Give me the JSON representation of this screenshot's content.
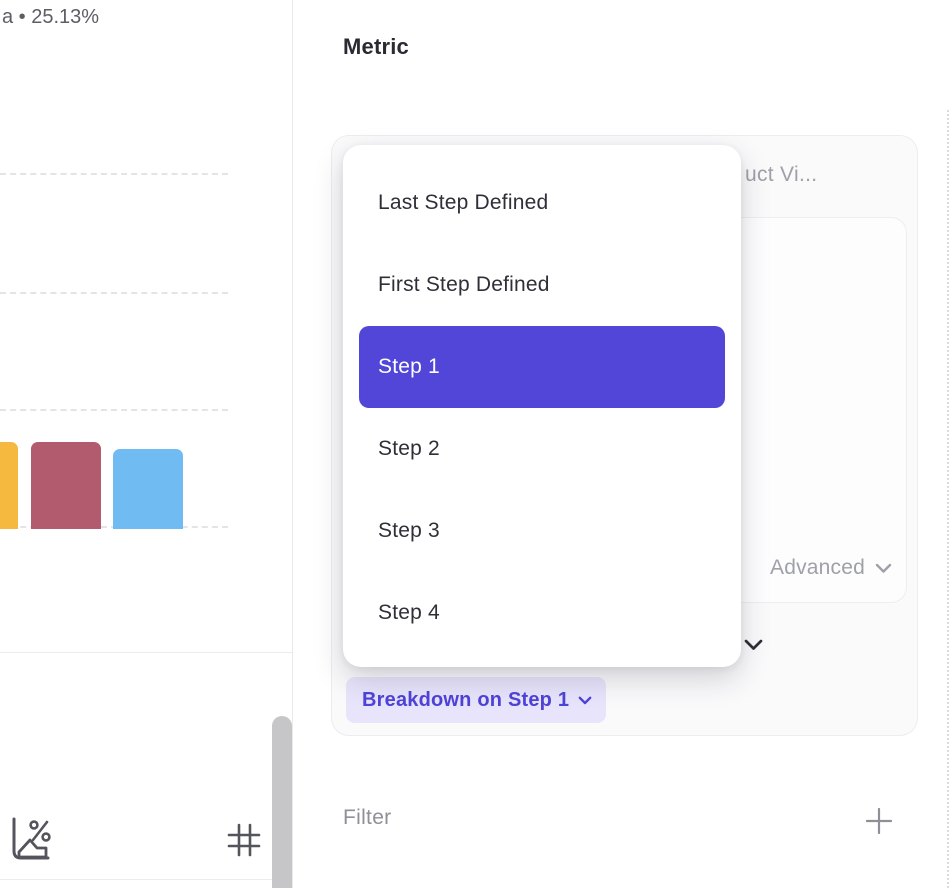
{
  "colors": {
    "accent": "#5246D9",
    "accent-soft": "#E7E4FB",
    "accent-text": "#4F43D8",
    "menu-text": "#2F2F38",
    "muted-text": "#9FA0A8",
    "gray-text": "#8F8F98",
    "legend-text": "#5D5D66",
    "icon-gray": "#54545C"
  },
  "left_panel": {
    "legend": "a • 25.13%",
    "bars": [
      {
        "name": "bar-1",
        "color": "#F6B93F"
      },
      {
        "name": "bar-2",
        "color": "#B25B6E"
      },
      {
        "name": "bar-3",
        "color": "#70BCF2"
      }
    ]
  },
  "right_panel": {
    "section_title": "Metric",
    "card": {
      "title_truncated": "uct Vi...",
      "advanced_label": "Advanced",
      "breakdown_button": "Breakdown on Step 1"
    },
    "filter": {
      "label": "Filter"
    }
  },
  "dropdown": {
    "items": [
      {
        "label": "Last Step Defined",
        "selected": false
      },
      {
        "label": "First Step Defined",
        "selected": false
      },
      {
        "label": "Step 1",
        "selected": true
      },
      {
        "label": "Step 2",
        "selected": false
      },
      {
        "label": "Step 3",
        "selected": false
      },
      {
        "label": "Step 4",
        "selected": false
      }
    ]
  }
}
